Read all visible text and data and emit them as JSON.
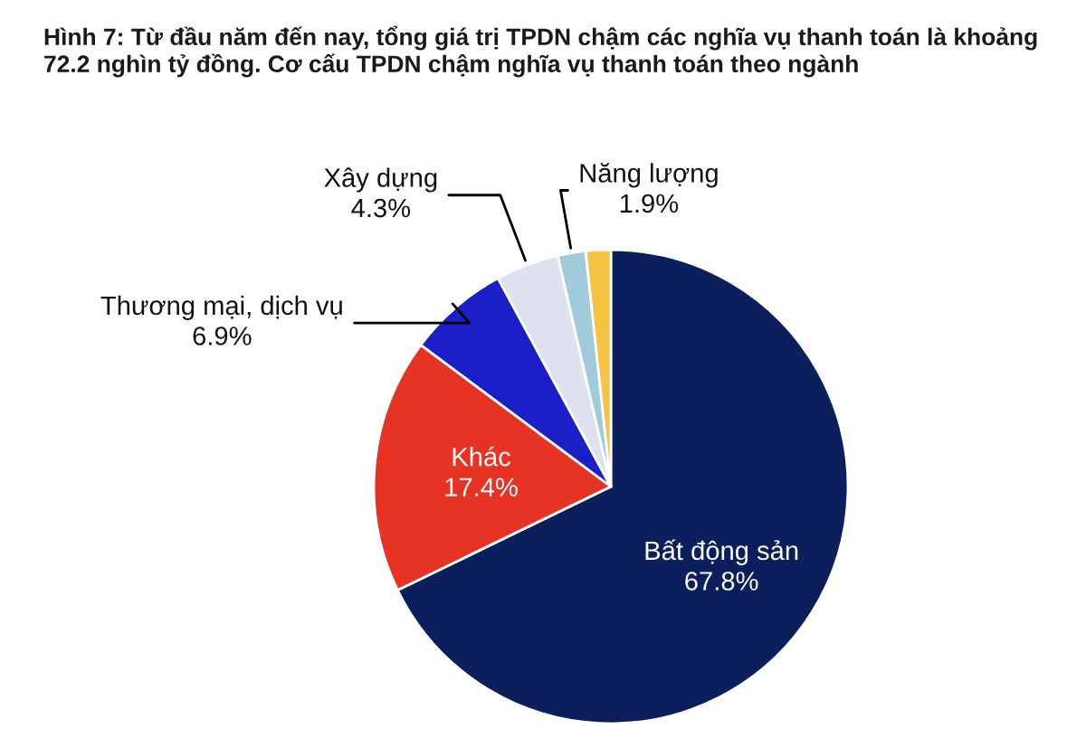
{
  "chart_data": {
    "type": "pie",
    "title": "Hình 7: Từ đầu năm đến nay, tổng giá trị TPDN chậm các nghĩa vụ thanh toán là khoảng 72.2 nghìn tỷ đồng. Cơ cấu TPDN chậm nghĩa vụ thanh toán theo ngành",
    "categories": [
      "Bất động sản",
      "Khác",
      "Thương mại, dịch vụ",
      "Xây dựng",
      "Năng lượng",
      null
    ],
    "values": [
      67.8,
      17.4,
      6.9,
      4.3,
      1.9,
      1.7
    ],
    "value_labels": [
      "67.8%",
      "17.4%",
      "6.9%",
      "4.3%",
      "1.9%",
      null
    ],
    "colors": [
      "#0b1f5c",
      "#e63323",
      "#1a1fc8",
      "#dde1f0",
      "#9fcbdb",
      "#f5c242"
    ]
  }
}
